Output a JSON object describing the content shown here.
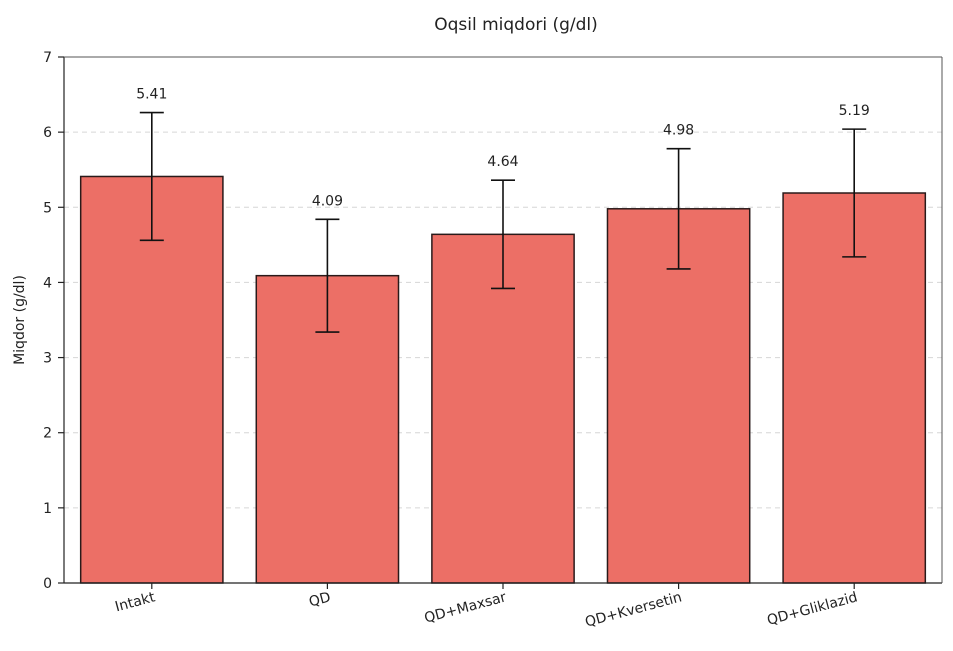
{
  "chart_data": {
    "type": "bar",
    "title": "Oqsil miqdori (g/dl)",
    "xlabel": "",
    "ylabel": "Miqdor (g/dl)",
    "ylim": [
      0,
      7
    ],
    "yticks": [
      0,
      1,
      2,
      3,
      4,
      5,
      6,
      7
    ],
    "grid": "y-dashed",
    "categories": [
      "Intakt",
      "QD",
      "QD+Maxsar",
      "QD+Kversetin",
      "QD+Gliklazid"
    ],
    "values": [
      5.41,
      4.09,
      4.64,
      4.98,
      5.19
    ],
    "value_labels": [
      "5.41",
      "4.09",
      "4.64",
      "4.98",
      "5.19"
    ],
    "errors": [
      0.85,
      0.75,
      0.72,
      0.8,
      0.85
    ],
    "bar_color": "#ec6f66",
    "bar_edge_color": "#2a1a1a"
  }
}
